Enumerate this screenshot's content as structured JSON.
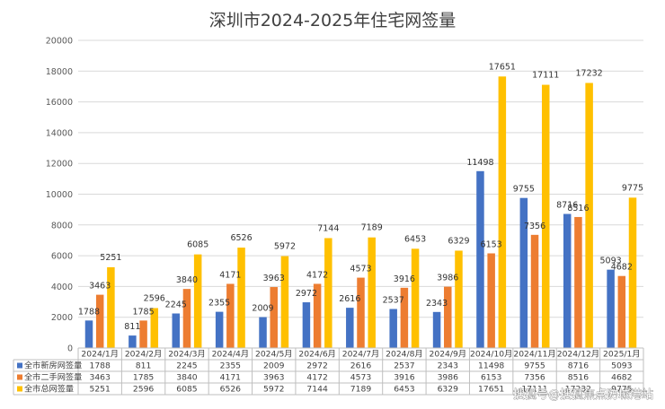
{
  "chart_data": {
    "type": "bar",
    "title": "深圳市2024-2025年住宅网签量",
    "xlabel": "",
    "ylabel": "",
    "ylim": [
      0,
      20000
    ],
    "yticks": [
      0,
      2000,
      4000,
      6000,
      8000,
      10000,
      12000,
      14000,
      16000,
      18000,
      20000
    ],
    "grid": true,
    "legend": "data-table-left",
    "categories": [
      "2024/1月",
      "2024/2月",
      "2024/3月",
      "2024/4月",
      "2024/5月",
      "2024/6月",
      "2024/7月",
      "2024/8月",
      "2024/9月",
      "2024/10月",
      "2024/11月",
      "2024/12月",
      "2025/1月"
    ],
    "series": [
      {
        "name": "全市新房网签量",
        "color": "#4472C4",
        "values": [
          1788,
          811,
          2245,
          2355,
          2009,
          2972,
          2616,
          2537,
          2343,
          11498,
          9755,
          8716,
          5093
        ]
      },
      {
        "name": "全市二手网签量",
        "color": "#ED7D31",
        "values": [
          3463,
          1785,
          3840,
          4171,
          3963,
          4172,
          4573,
          3916,
          3986,
          6153,
          7356,
          8516,
          4682
        ]
      },
      {
        "name": "全市总网签量",
        "color": "#FFC000",
        "values": [
          5251,
          2596,
          6085,
          6526,
          5972,
          7144,
          7189,
          6453,
          6329,
          17651,
          17111,
          17232,
          9775
        ]
      }
    ]
  },
  "watermark": "搜狐号@搜狐焦点防城港站"
}
